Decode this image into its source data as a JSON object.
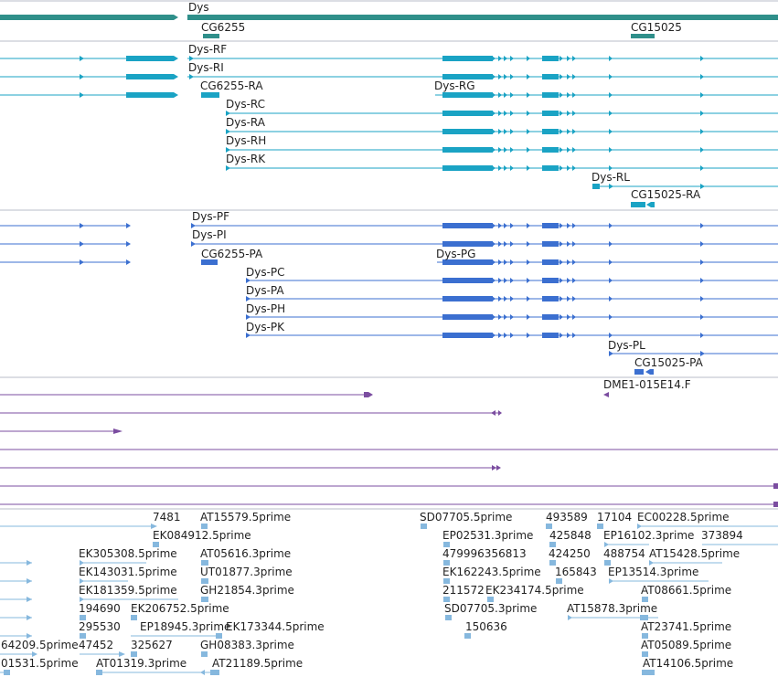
{
  "colors": {
    "gene": "#2f8f8a",
    "mrna": "#1aa3c4",
    "protein": "#3b6fd0",
    "clone": "#7b4da0",
    "est": "#86b8de",
    "divider": "#b8bec8"
  },
  "gene_track": {
    "labels": [
      "Dys",
      "CG6255",
      "CG15025"
    ]
  },
  "transcripts": {
    "labels": [
      "Dys-RF",
      "Dys-RI",
      "CG6255-RA",
      "Dys-RG",
      "Dys-RC",
      "Dys-RA",
      "Dys-RH",
      "Dys-RK",
      "Dys-RL",
      "CG15025-RA"
    ]
  },
  "polypeptides": {
    "labels": [
      "Dys-PF",
      "Dys-PI",
      "CG6255-PA",
      "Dys-PG",
      "Dys-PC",
      "Dys-PA",
      "Dys-PH",
      "Dys-PK",
      "Dys-PL",
      "CG15025-PA"
    ]
  },
  "clones": {
    "labels": [
      "DME1-015E14.F"
    ]
  },
  "ests": {
    "labels": [
      "7481",
      "AT15579.5prime",
      "SD07705.5prime",
      "493589",
      "17104",
      "EC00228.5prime",
      "EK084912.5prime",
      "EP02531.3prime",
      "425848",
      "EP16102.3prime",
      "373894",
      "EK305308.5prime",
      "AT05616.3prime",
      "479996356813",
      "424250",
      "488754",
      "AT15428.5prime",
      "EK143031.5prime",
      "UT01877.3prime",
      "EK162243.5prime",
      "165843",
      "EP13514.3prime",
      "EK181359.5prime",
      "GH21854.3prime",
      "211572",
      "EK234174.5prime",
      "AT08661.5prime",
      "194690",
      "EK206752.5prime",
      "SD07705.3prime",
      "AT15878.3prime",
      "295530",
      "EP18945.3prime",
      "EK173344.5prime",
      "150636",
      "AT23741.5prime",
      "64209.5prime",
      "47452",
      "325627",
      "GH08383.3prime",
      "AT05089.5prime",
      "01531.5prime",
      "AT01319.3prime",
      "AT21189.5prime",
      "AT14106.5prime"
    ]
  }
}
